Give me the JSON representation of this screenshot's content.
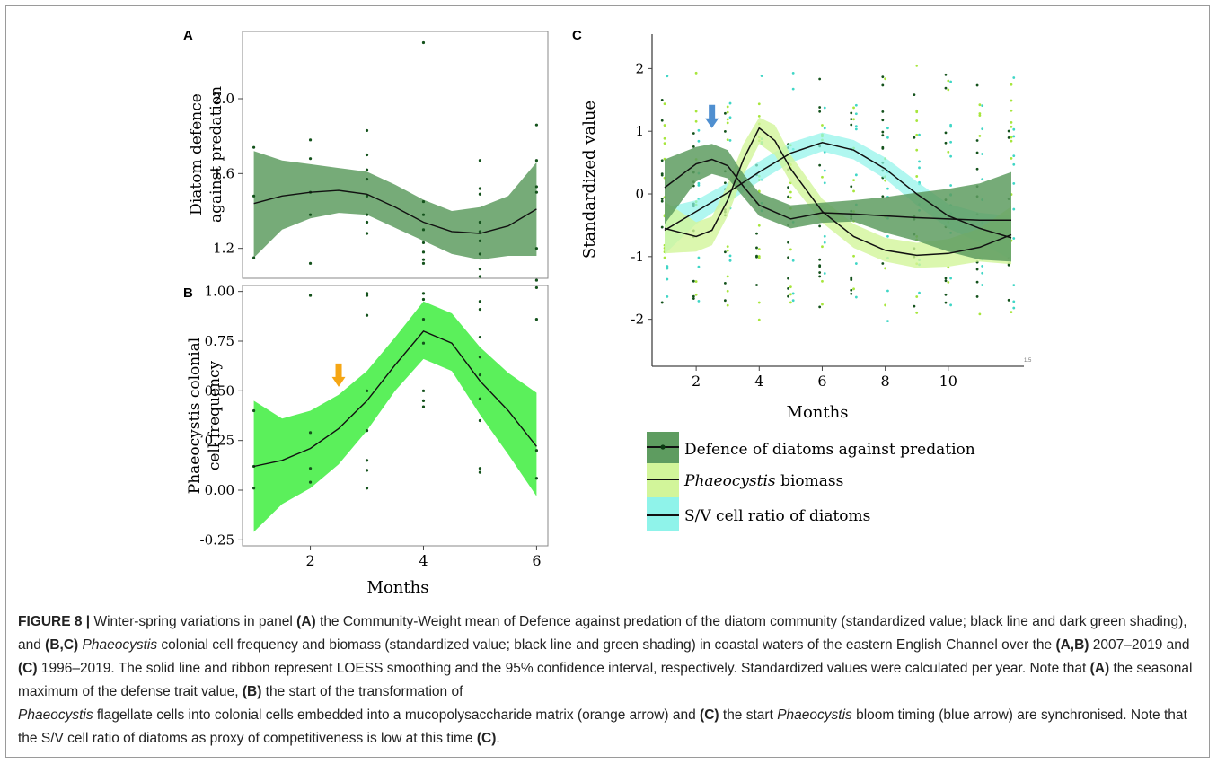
{
  "figure": {
    "panels": {
      "A": {
        "letter": "A",
        "ylabel_line1": "Diatom defence",
        "ylabel_line2": "against predation"
      },
      "B": {
        "letter": "B",
        "ylabel_line1": "Phaeocystis colonial",
        "ylabel_line2": "cell frequency",
        "xlabel": "Months"
      },
      "C": {
        "letter": "C",
        "ylabel": "Standardized value",
        "xlabel": "Months",
        "corner_tick": "1.5"
      }
    },
    "legend": {
      "items": [
        {
          "label": "Defence of diatoms against predation"
        },
        {
          "label_italic": "Phaeocystis",
          "label_rest": " biomass"
        },
        {
          "label": "S/V cell ratio of diatoms"
        }
      ]
    },
    "colors": {
      "dark_green": "#5e9c60",
      "light_green": "#52ef52",
      "yellow_green": "#d2f59a",
      "cyan": "#8ff3ea",
      "point_dark": "#14521c",
      "point_yg": "#a7e63c",
      "point_cyan": "#40d6c6",
      "orange_arrow": "#f5a614",
      "blue_arrow": "#4f8fd0"
    }
  },
  "chart_data": [
    {
      "panel": "A",
      "type": "line",
      "xlim": [
        0.8,
        6.2
      ],
      "ylim": [
        1.04,
        2.36
      ],
      "y_ticks": [
        1.2,
        1.6,
        2.0
      ],
      "y_tick_labels": [
        "1.2",
        "1.6",
        "2.0"
      ],
      "x_ticks": [
        2,
        4,
        6
      ],
      "series": [
        {
          "x": [
            1,
            1.5,
            2,
            2.5,
            3,
            3.5,
            4,
            4.5,
            5,
            5.5,
            6
          ],
          "y": [
            1.44,
            1.48,
            1.5,
            1.51,
            1.49,
            1.42,
            1.34,
            1.29,
            1.28,
            1.32,
            1.41
          ]
        }
      ],
      "band_lower": [
        1.15,
        1.3,
        1.36,
        1.39,
        1.38,
        1.31,
        1.24,
        1.17,
        1.14,
        1.16,
        1.16
      ],
      "band_upper": [
        1.72,
        1.67,
        1.65,
        1.63,
        1.61,
        1.54,
        1.46,
        1.4,
        1.42,
        1.48,
        1.66
      ],
      "points": [
        [
          1,
          1.74
        ],
        [
          1,
          1.48
        ],
        [
          1,
          1.15
        ],
        [
          2,
          1.78
        ],
        [
          2,
          1.68
        ],
        [
          2,
          1.5
        ],
        [
          2,
          1.38
        ],
        [
          2,
          1.12
        ],
        [
          3,
          1.83
        ],
        [
          3,
          1.7
        ],
        [
          3,
          1.62
        ],
        [
          3,
          1.57
        ],
        [
          3,
          1.48
        ],
        [
          3,
          1.38
        ],
        [
          3,
          1.34
        ],
        [
          3,
          1.28
        ],
        [
          4,
          2.3
        ],
        [
          4,
          1.45
        ],
        [
          4,
          1.38
        ],
        [
          4,
          1.3
        ],
        [
          4,
          1.23
        ],
        [
          4,
          1.18
        ],
        [
          4,
          1.14
        ],
        [
          4,
          1.12
        ],
        [
          5,
          1.67
        ],
        [
          5,
          1.52
        ],
        [
          5,
          1.49
        ],
        [
          5,
          1.34
        ],
        [
          5,
          1.29
        ],
        [
          5,
          1.24
        ],
        [
          5,
          1.17
        ],
        [
          5,
          1.09
        ],
        [
          5,
          1.05
        ],
        [
          6,
          1.86
        ],
        [
          6,
          1.67
        ],
        [
          6,
          1.53
        ],
        [
          6,
          1.5
        ],
        [
          6,
          1.2
        ],
        [
          6,
          1.03
        ],
        [
          6,
          0.99
        ]
      ]
    },
    {
      "panel": "B",
      "type": "line",
      "xlim": [
        0.8,
        6.2
      ],
      "ylim": [
        -0.28,
        1.03
      ],
      "y_ticks": [
        -0.25,
        0.0,
        0.25,
        0.5,
        0.75,
        1.0
      ],
      "y_tick_labels": [
        "-0.25",
        "0.00",
        "0.25",
        "0.50",
        "0.75",
        "1.00"
      ],
      "x_ticks": [
        2,
        4,
        6
      ],
      "x_tick_labels": [
        "2",
        "4",
        "6"
      ],
      "series": [
        {
          "x": [
            1,
            1.5,
            2,
            2.5,
            3,
            3.5,
            4,
            4.5,
            5,
            5.5,
            6
          ],
          "y": [
            0.12,
            0.15,
            0.21,
            0.31,
            0.45,
            0.63,
            0.8,
            0.74,
            0.55,
            0.4,
            0.22
          ]
        }
      ],
      "band_lower": [
        -0.21,
        -0.07,
        0.01,
        0.13,
        0.3,
        0.5,
        0.66,
        0.6,
        0.38,
        0.18,
        -0.03
      ],
      "band_upper": [
        0.45,
        0.36,
        0.4,
        0.48,
        0.6,
        0.77,
        0.95,
        0.89,
        0.72,
        0.59,
        0.49
      ],
      "points": [
        [
          1,
          0.4
        ],
        [
          1,
          0.12
        ],
        [
          1,
          0.01
        ],
        [
          2,
          0.98
        ],
        [
          2,
          0.29
        ],
        [
          2,
          0.11
        ],
        [
          2,
          0.04
        ],
        [
          3,
          0.99
        ],
        [
          3,
          0.98
        ],
        [
          3,
          0.88
        ],
        [
          3,
          0.5
        ],
        [
          3,
          0.3
        ],
        [
          3,
          0.15
        ],
        [
          3,
          0.1
        ],
        [
          3,
          0.01
        ],
        [
          4,
          0.99
        ],
        [
          4,
          0.96
        ],
        [
          4,
          0.86
        ],
        [
          4,
          0.74
        ],
        [
          4,
          0.5
        ],
        [
          4,
          0.45
        ],
        [
          4,
          0.42
        ],
        [
          5,
          0.95
        ],
        [
          5,
          0.91
        ],
        [
          5,
          0.77
        ],
        [
          5,
          0.67
        ],
        [
          5,
          0.58
        ],
        [
          5,
          0.46
        ],
        [
          5,
          0.35
        ],
        [
          5,
          0.11
        ],
        [
          5,
          0.09
        ],
        [
          6,
          0.86
        ],
        [
          6,
          0.2
        ],
        [
          6,
          0.06
        ]
      ],
      "annotation": {
        "type": "arrow",
        "color": "orange",
        "x": 2.5,
        "y": 0.52
      }
    },
    {
      "panel": "C",
      "type": "line",
      "xlim": [
        0.6,
        12.4
      ],
      "ylim": [
        -2.75,
        2.55
      ],
      "y_ticks": [
        -2,
        -1,
        0,
        1,
        2
      ],
      "y_tick_labels": [
        "-2",
        "-1",
        "0",
        "1",
        "2"
      ],
      "x_ticks": [
        2,
        4,
        6,
        8,
        10
      ],
      "x_tick_labels": [
        "2",
        "4",
        "6",
        "8",
        "10"
      ],
      "series": [
        {
          "name": "Defence of diatoms against predation",
          "x": [
            1,
            2,
            2.5,
            3,
            3.5,
            4,
            5,
            6,
            7,
            8,
            9,
            10,
            11,
            12
          ],
          "y": [
            0.1,
            0.48,
            0.55,
            0.45,
            0.12,
            -0.18,
            -0.4,
            -0.3,
            -0.32,
            -0.35,
            -0.38,
            -0.4,
            -0.42,
            -0.42
          ]
        },
        {
          "name": "Phaeocystis biomass",
          "x": [
            1,
            2,
            2.5,
            3,
            3.5,
            4,
            4.5,
            5,
            6,
            7,
            8,
            9,
            10,
            11,
            12
          ],
          "y": [
            -0.55,
            -0.68,
            -0.58,
            -0.1,
            0.55,
            1.05,
            0.85,
            0.4,
            -0.28,
            -0.68,
            -0.9,
            -0.98,
            -0.95,
            -0.85,
            -0.65
          ]
        },
        {
          "name": "S/V cell ratio of diatoms",
          "x": [
            1,
            2,
            3,
            4,
            5,
            6,
            7,
            8,
            9,
            10,
            11,
            12
          ],
          "y": [
            -0.58,
            -0.28,
            0.02,
            0.35,
            0.65,
            0.82,
            0.7,
            0.4,
            0.0,
            -0.35,
            -0.55,
            -0.7
          ]
        }
      ],
      "bands": [
        {
          "series": "Defence of diatoms against predation",
          "lower": [
            -0.48,
            0.2,
            0.32,
            0.25,
            -0.05,
            -0.35,
            -0.55,
            -0.46,
            -0.44,
            -0.62,
            -0.75,
            -0.92,
            -1.05,
            -1.08
          ],
          "upper": [
            0.55,
            0.75,
            0.8,
            0.7,
            0.32,
            0.02,
            -0.18,
            -0.14,
            -0.1,
            -0.05,
            0.02,
            0.08,
            0.17,
            0.35
          ]
        },
        {
          "series": "Phaeocystis biomass",
          "lower": [
            -0.95,
            -0.92,
            -0.82,
            -0.35,
            0.3,
            0.8,
            0.62,
            0.18,
            -0.46,
            -0.86,
            -1.08,
            -1.18,
            -1.16,
            -1.08,
            -1.12
          ],
          "upper": [
            -0.12,
            -0.45,
            -0.36,
            0.15,
            0.8,
            1.22,
            1.1,
            0.62,
            -0.08,
            -0.48,
            -0.7,
            -0.78,
            -0.72,
            -0.55,
            -0.2
          ]
        },
        {
          "series": "S/V cell ratio of diatoms",
          "lower": [
            -0.96,
            -0.48,
            -0.14,
            0.2,
            0.5,
            0.68,
            0.55,
            0.24,
            -0.18,
            -0.55,
            -0.78,
            -1.05
          ],
          "upper": [
            -0.22,
            -0.1,
            0.18,
            0.52,
            0.82,
            0.98,
            0.86,
            0.58,
            0.2,
            -0.16,
            -0.3,
            -0.35
          ]
        }
      ],
      "annotation": {
        "type": "arrow",
        "color": "blue",
        "x": 2.5,
        "y": 1.05
      }
    }
  ],
  "caption": {
    "fig_label": "FIGURE 8 |",
    "t1": " Winter-spring variations in panel ",
    "b1": "(A)",
    "t2": " the Community-Weight mean of Defence against predation of the diatom community (standardized value; black line and dark green shading), and ",
    "b2": "(B,C)",
    "i1": "Phaeocystis",
    "t3": " colonial cell frequency and biomass (standardized value; black line and green shading) in coastal waters of the eastern English Channel over the ",
    "b3": "(A,B)",
    "t4": " 2007–2019 and ",
    "b4": "(C)",
    "t5": " 1996–2019. The solid line and ribbon represent LOESS smoothing and the 95% confidence interval, respectively. Standardized values were calculated per year. Note that ",
    "b5": "(A)",
    "t6": " the seasonal maximum of the defense trait value, ",
    "b6": "(B)",
    "t7": " the start of the transformation of ",
    "i2": "Phaeocystis",
    "t8": " flagellate cells into colonial cells embedded into a mucopolysaccharide matrix (orange arrow) and ",
    "b7": "(C)",
    "t9": " the start ",
    "i3": "Phaeocystis",
    "t10": " bloom timing (blue arrow) are synchronised. Note that the S/V cell ratio of diatoms as proxy of competitiveness is low at this time ",
    "b8": "(C)",
    "t11": "."
  }
}
